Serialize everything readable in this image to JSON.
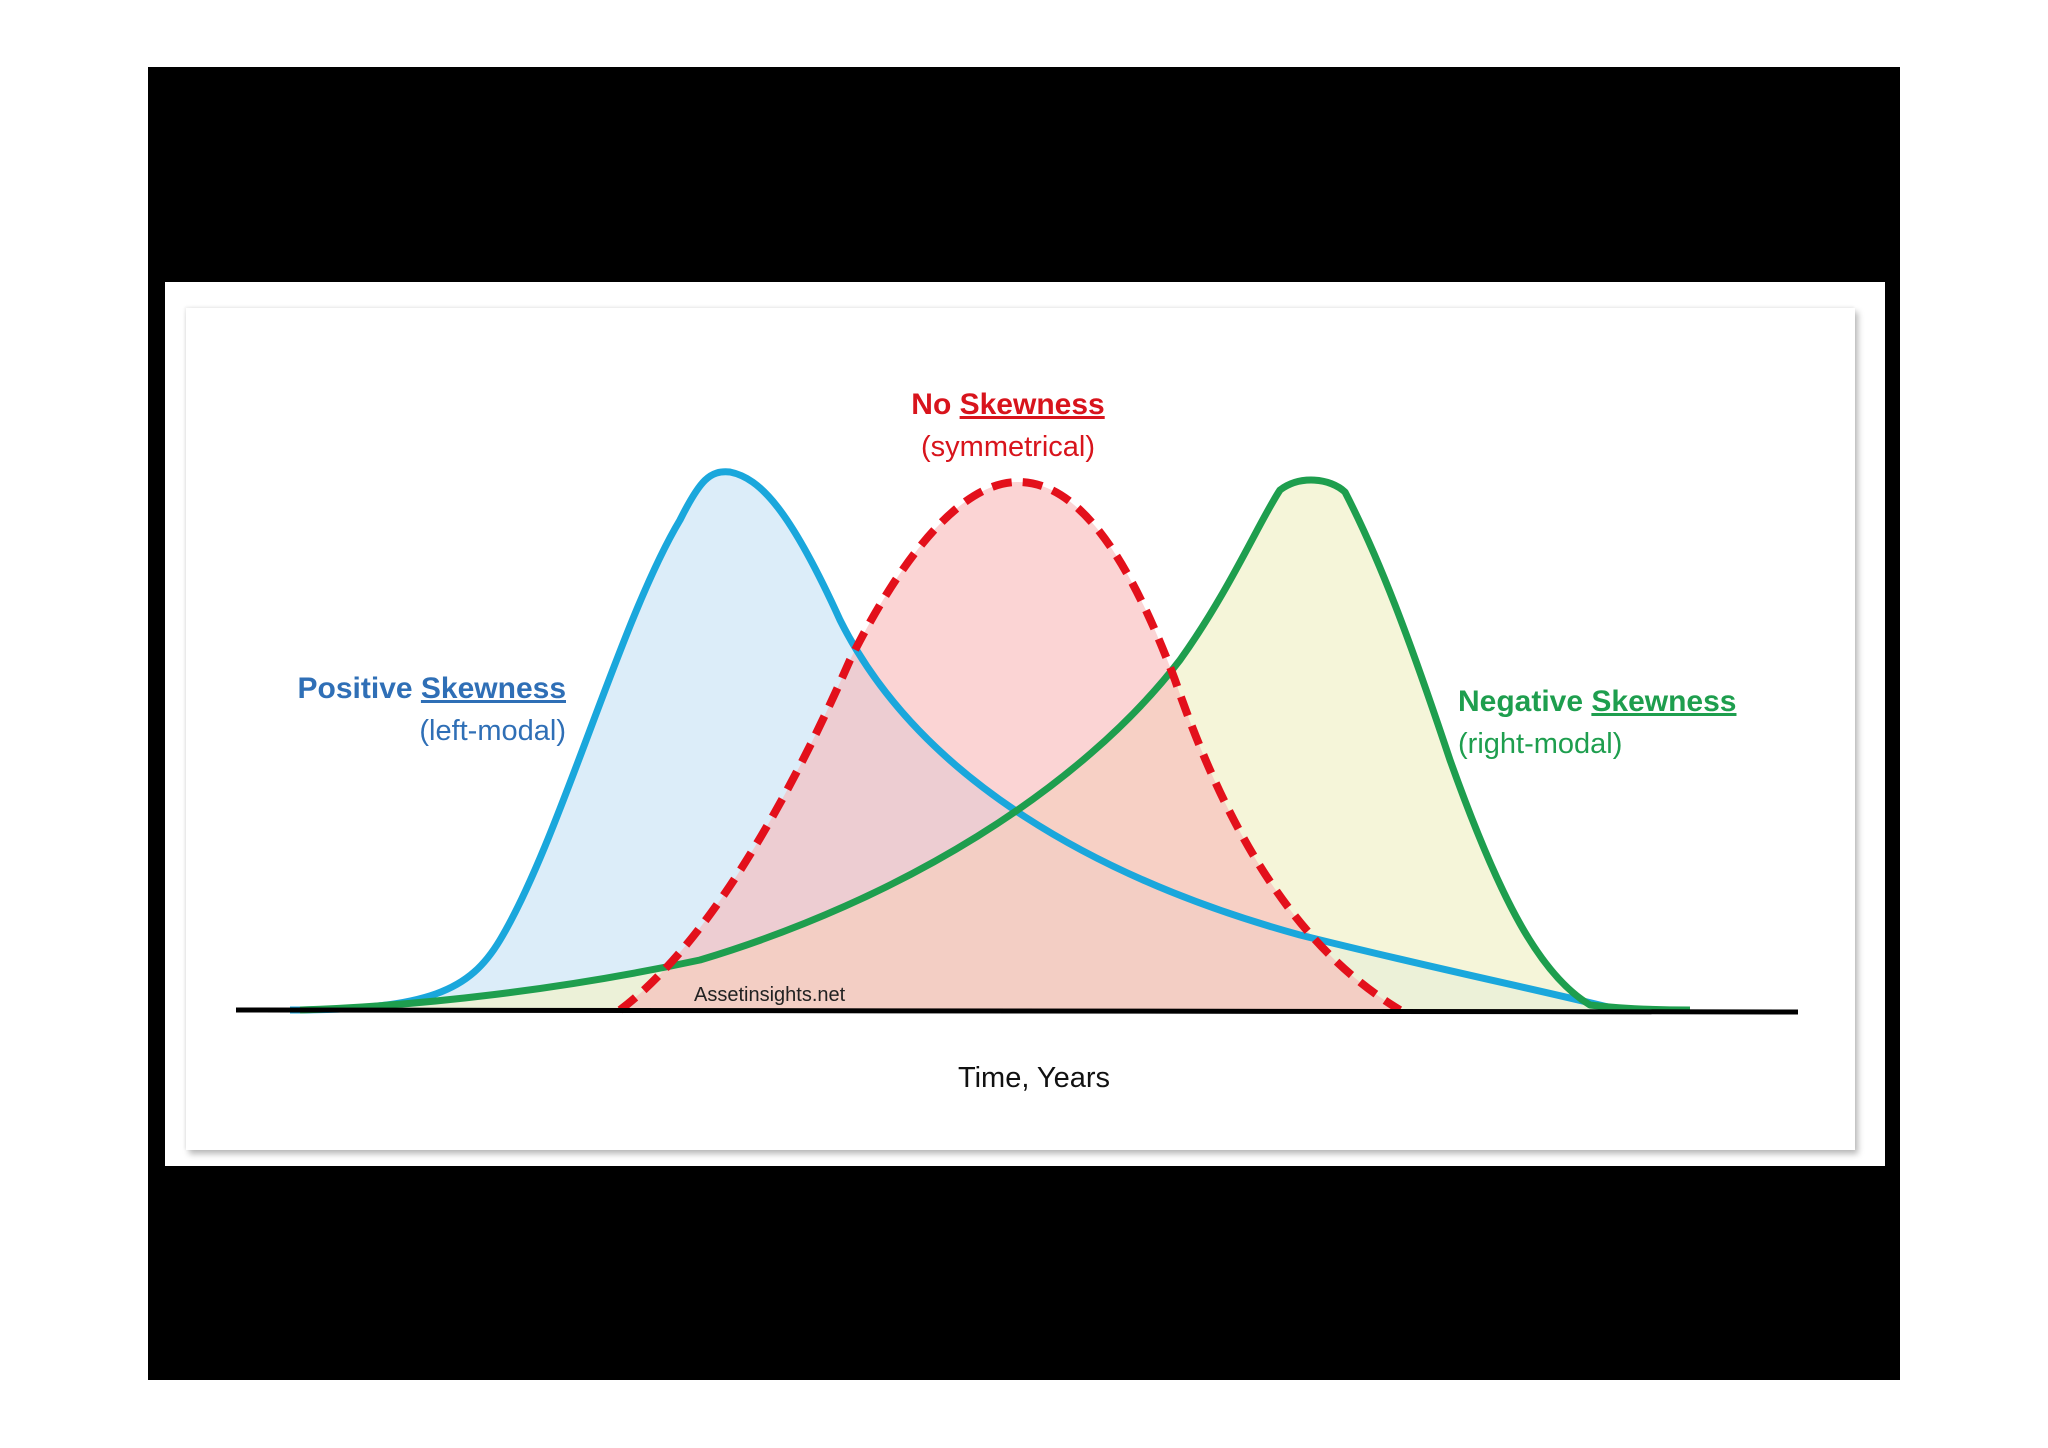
{
  "labels": {
    "positive": {
      "title_1": "Positive ",
      "title_2": "Skewness",
      "subtitle": "(left-modal)"
    },
    "none": {
      "title_1": "No ",
      "title_2": "Skewness",
      "subtitle": "(symmetrical)"
    },
    "negative": {
      "title_1": "Negative ",
      "title_2": "Skewness",
      "subtitle": "(right-modal)"
    }
  },
  "watermark": "Assetinsights.net",
  "axis_label": "Time, Years",
  "colors": {
    "positive_line": "#1aa7dc",
    "positive_fill": "#d6eaf8",
    "positive_text": "#2f6fb6",
    "none_line": "#e3101b",
    "none_fill": "#f9b8b8",
    "none_text": "#d8141c",
    "negative_line": "#1e9e4e",
    "negative_fill": "#f2f1cc",
    "negative_text": "#1e9e4e",
    "axis": "#000000"
  }
}
